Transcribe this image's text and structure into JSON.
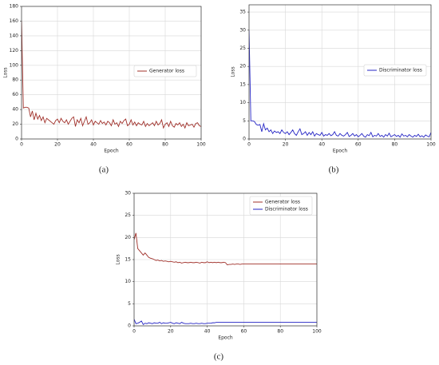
{
  "chart_data": [
    {
      "type": "line",
      "caption": "(a)",
      "xlabel": "Epoch",
      "ylabel": "Loss",
      "xlim": [
        0,
        100
      ],
      "xticks": [
        0,
        20,
        40,
        60,
        80,
        100
      ],
      "ylim": [
        0,
        180
      ],
      "yticks": [
        0,
        20,
        40,
        60,
        80,
        100,
        120,
        140,
        160,
        180
      ],
      "grid": true,
      "legend": "center right",
      "x": [
        0,
        1,
        2,
        3,
        4,
        5,
        6,
        7,
        8,
        9,
        10,
        11,
        12,
        13,
        14,
        15,
        16,
        17,
        18,
        19,
        20,
        21,
        22,
        23,
        24,
        25,
        26,
        27,
        28,
        29,
        30,
        31,
        32,
        33,
        34,
        35,
        36,
        37,
        38,
        39,
        40,
        41,
        42,
        43,
        44,
        45,
        46,
        47,
        48,
        49,
        50,
        51,
        52,
        53,
        54,
        55,
        56,
        57,
        58,
        59,
        60,
        61,
        62,
        63,
        64,
        65,
        66,
        67,
        68,
        69,
        70,
        71,
        72,
        73,
        74,
        75,
        76,
        77,
        78,
        79,
        80,
        81,
        82,
        83,
        84,
        85,
        86,
        87,
        88,
        89,
        90,
        91,
        92,
        93,
        94,
        95,
        96,
        97,
        98,
        99,
        100
      ],
      "series": [
        {
          "name": "Generator loss",
          "color": "#a0302a",
          "values": [
            160,
            42,
            43,
            43,
            42,
            30,
            38,
            26,
            35,
            27,
            32,
            25,
            30,
            22,
            28,
            26,
            24,
            22,
            20,
            25,
            27,
            22,
            28,
            24,
            22,
            26,
            20,
            24,
            28,
            30,
            17,
            26,
            22,
            28,
            18,
            24,
            30,
            20,
            22,
            26,
            19,
            24,
            22,
            20,
            25,
            21,
            23,
            19,
            24,
            22,
            18,
            26,
            20,
            22,
            17,
            24,
            21,
            25,
            27,
            18,
            20,
            26,
            19,
            23,
            18,
            22,
            20,
            19,
            24,
            17,
            21,
            18,
            20,
            22,
            18,
            24,
            19,
            21,
            26,
            15,
            20,
            22,
            17,
            24,
            18,
            16,
            21,
            19,
            22,
            17,
            20,
            15,
            22,
            18,
            19,
            20,
            16,
            21,
            22,
            18,
            17
          ]
        }
      ]
    },
    {
      "type": "line",
      "caption": "(b)",
      "xlabel": "Epoch",
      "ylabel": "Loss",
      "xlim": [
        0,
        100
      ],
      "xticks": [
        0,
        20,
        40,
        60,
        80,
        100
      ],
      "ylim": [
        0,
        37
      ],
      "yticks": [
        0,
        5,
        10,
        15,
        20,
        25,
        30,
        35
      ],
      "grid": true,
      "legend": "center right",
      "x": [
        0,
        1,
        2,
        3,
        4,
        5,
        6,
        7,
        8,
        9,
        10,
        11,
        12,
        13,
        14,
        15,
        16,
        17,
        18,
        19,
        20,
        21,
        22,
        23,
        24,
        25,
        26,
        27,
        28,
        29,
        30,
        31,
        32,
        33,
        34,
        35,
        36,
        37,
        38,
        39,
        40,
        41,
        42,
        43,
        44,
        45,
        46,
        47,
        48,
        49,
        50,
        51,
        52,
        53,
        54,
        55,
        56,
        57,
        58,
        59,
        60,
        61,
        62,
        63,
        64,
        65,
        66,
        67,
        68,
        69,
        70,
        71,
        72,
        73,
        74,
        75,
        76,
        77,
        78,
        79,
        80,
        81,
        82,
        83,
        84,
        85,
        86,
        87,
        88,
        89,
        90,
        91,
        92,
        93,
        94,
        95,
        96,
        97,
        98,
        99,
        100
      ],
      "series": [
        {
          "name": "Discriminator loss",
          "color": "#2424c4",
          "values": [
            30,
            5,
            5,
            4.8,
            4,
            3.8,
            4,
            2,
            4.2,
            2.5,
            3,
            2,
            2.5,
            1.5,
            2.2,
            1.8,
            2,
            1.5,
            2.5,
            1.8,
            1.5,
            2,
            1.2,
            1.8,
            2.5,
            1.5,
            1,
            2,
            2.8,
            1.2,
            1.5,
            2,
            1,
            1.8,
            1.2,
            2,
            0.8,
            1.5,
            1.2,
            1,
            1.8,
            0.8,
            1.2,
            1,
            1.5,
            0.9,
            1.2,
            2,
            1,
            0.8,
            1.5,
            1,
            0.8,
            1.2,
            1.8,
            0.7,
            1,
            1.5,
            0.8,
            1.2,
            0.6,
            1,
            1.5,
            0.8,
            0.5,
            1.2,
            0.9,
            1.8,
            0.6,
            1,
            0.8,
            1.5,
            0.7,
            1,
            0.5,
            1.2,
            0.8,
            1.6,
            0.6,
            0.9,
            1.2,
            0.7,
            1,
            0.5,
            1.4,
            0.8,
            1,
            0.6,
            1.2,
            0.8,
            0.5,
            1,
            0.7,
            1.3,
            0.6,
            0.9,
            0.5,
            1.1,
            0.8,
            0.6,
            1.8
          ]
        }
      ]
    },
    {
      "type": "line",
      "caption": "(c)",
      "xlabel": "Epoch",
      "ylabel": "Loss",
      "xlim": [
        0,
        100
      ],
      "xticks": [
        0,
        20,
        40,
        60,
        80,
        100
      ],
      "ylim": [
        0,
        30
      ],
      "yticks": [
        0,
        5,
        10,
        15,
        20,
        25,
        30
      ],
      "grid": true,
      "legend": "upper right",
      "x": [
        0,
        1,
        2,
        3,
        4,
        5,
        6,
        7,
        8,
        9,
        10,
        11,
        12,
        13,
        14,
        15,
        16,
        17,
        18,
        19,
        20,
        21,
        22,
        23,
        24,
        25,
        26,
        27,
        28,
        29,
        30,
        31,
        32,
        33,
        34,
        35,
        36,
        37,
        38,
        39,
        40,
        41,
        42,
        43,
        44,
        45,
        46,
        47,
        48,
        49,
        50,
        51,
        52,
        53,
        54,
        55,
        56,
        57,
        58,
        59,
        60,
        61,
        62,
        63,
        64,
        65,
        66,
        67,
        68,
        69,
        70,
        71,
        72,
        73,
        74,
        75,
        76,
        77,
        78,
        79,
        80,
        81,
        82,
        83,
        84,
        85,
        86,
        87,
        88,
        89,
        90,
        91,
        92,
        93,
        94,
        95,
        96,
        97,
        98,
        99,
        100
      ],
      "series": [
        {
          "name": "Generator loss",
          "color": "#a0302a",
          "values": [
            19.5,
            21,
            17.5,
            17,
            16.5,
            16,
            16.5,
            16,
            15.5,
            15.3,
            15.2,
            15,
            14.8,
            14.9,
            14.7,
            14.8,
            14.6,
            14.7,
            14.6,
            14.5,
            14.6,
            14.5,
            14.4,
            14.5,
            14.3,
            14.4,
            14.2,
            14.3,
            14.4,
            14.3,
            14.3,
            14.4,
            14.3,
            14.3,
            14.4,
            14.3,
            14.2,
            14.4,
            14.3,
            14.3,
            14.5,
            14.3,
            14.4,
            14.3,
            14.4,
            14.3,
            14.4,
            14.3,
            14.3,
            14.4,
            14.3,
            13.8,
            13.9,
            13.9,
            14,
            13.9,
            14,
            14,
            13.9,
            14,
            14,
            14,
            14,
            14,
            14,
            14,
            14,
            14,
            14,
            14,
            14,
            14,
            14,
            14,
            14,
            14,
            14,
            14,
            14,
            14,
            14,
            14,
            14,
            14,
            14,
            14,
            14,
            14,
            14,
            14,
            14,
            14,
            14,
            14,
            14,
            14,
            14,
            14,
            14,
            14,
            14
          ]
        },
        {
          "name": "Discriminator loss",
          "color": "#2424c4",
          "values": [
            1.5,
            0.5,
            0.6,
            0.8,
            1.1,
            0.3,
            0.6,
            0.5,
            0.7,
            0.6,
            0.5,
            0.7,
            0.6,
            0.6,
            0.8,
            0.5,
            0.7,
            0.6,
            0.6,
            0.7,
            0.8,
            0.6,
            0.5,
            0.7,
            0.6,
            0.5,
            0.8,
            0.6,
            0.5,
            0.5,
            0.5,
            0.6,
            0.5,
            0.5,
            0.6,
            0.5,
            0.5,
            0.6,
            0.5,
            0.5,
            0.6,
            0.6,
            0.6,
            0.7,
            0.7,
            0.8,
            0.8,
            0.8,
            0.8,
            0.8,
            0.8,
            0.8,
            0.8,
            0.8,
            0.8,
            0.8,
            0.8,
            0.8,
            0.8,
            0.8,
            0.8,
            0.8,
            0.8,
            0.8,
            0.8,
            0.8,
            0.8,
            0.8,
            0.8,
            0.8,
            0.8,
            0.8,
            0.8,
            0.8,
            0.8,
            0.8,
            0.8,
            0.8,
            0.8,
            0.8,
            0.8,
            0.8,
            0.8,
            0.8,
            0.8,
            0.8,
            0.8,
            0.8,
            0.8,
            0.8,
            0.8,
            0.8,
            0.8,
            0.8,
            0.8,
            0.8,
            0.8,
            0.8,
            0.8,
            0.8,
            0.8
          ]
        }
      ]
    }
  ]
}
